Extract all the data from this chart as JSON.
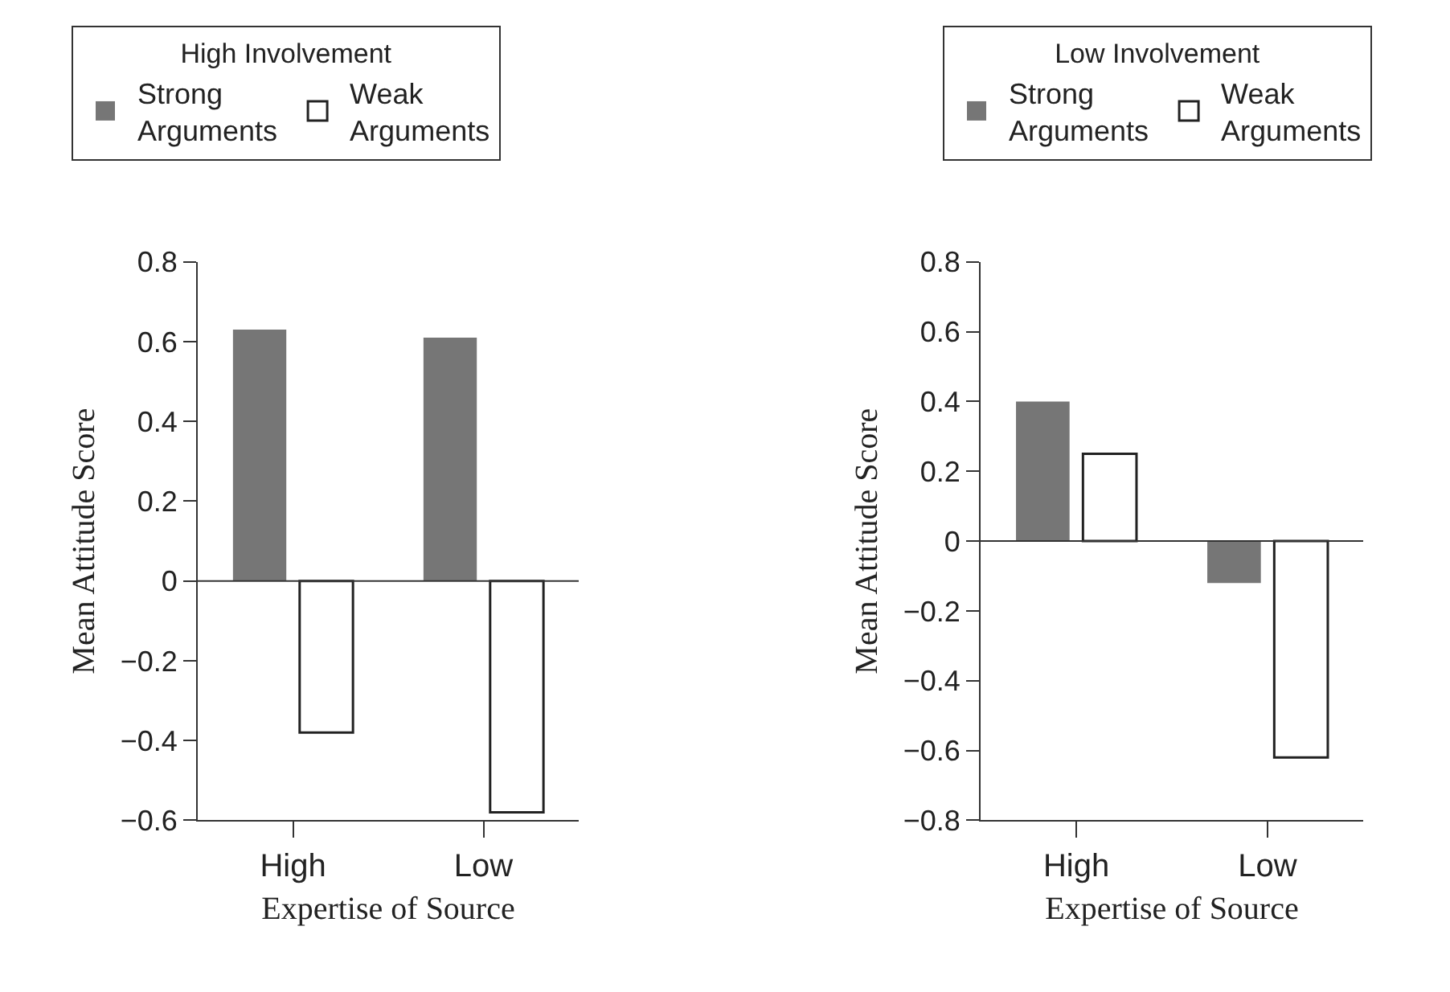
{
  "chart_data": [
    {
      "type": "bar",
      "legend_title": "High Involvement",
      "xlabel": "Expertise of Source",
      "ylabel": "Mean Attitude Score",
      "categories": [
        "High",
        "Low"
      ],
      "ylim": [
        -0.6,
        0.8
      ],
      "yticks": [
        {
          "value": -0.6,
          "label": "−0.6"
        },
        {
          "value": -0.4,
          "label": "−0.4"
        },
        {
          "value": -0.2,
          "label": "−0.2"
        },
        0,
        0.2,
        0.4,
        0.6,
        0.8
      ],
      "legend": "top",
      "ref_lines": [
        {
          "axis": "y",
          "value": 0
        }
      ],
      "series": [
        {
          "name": "Strong Arguments",
          "color": "#767676",
          "values": [
            0.63,
            0.61
          ]
        },
        {
          "name": "Weak Arguments",
          "color": "#ffffff",
          "values": [
            -0.38,
            -0.58
          ]
        }
      ]
    },
    {
      "type": "bar",
      "legend_title": "Low Involvement",
      "xlabel": "Expertise of Source",
      "ylabel": "Mean Attitude Score",
      "categories": [
        "High",
        "Low"
      ],
      "ylim": [
        -0.8,
        0.8
      ],
      "yticks": [
        {
          "value": -0.8,
          "label": "−0.8"
        },
        {
          "value": -0.6,
          "label": "−0.6"
        },
        {
          "value": -0.4,
          "label": "−0.4"
        },
        {
          "value": -0.2,
          "label": "−0.2"
        },
        0,
        0.2,
        0.4,
        0.6,
        0.8
      ],
      "legend": "top",
      "ref_lines": [
        {
          "axis": "y",
          "value": 0
        }
      ],
      "series": [
        {
          "name": "Strong Arguments",
          "color": "#767676",
          "values": [
            0.4,
            -0.12
          ]
        },
        {
          "name": "Weak Arguments",
          "color": "#ffffff",
          "values": [
            0.25,
            -0.62
          ]
        }
      ]
    }
  ]
}
